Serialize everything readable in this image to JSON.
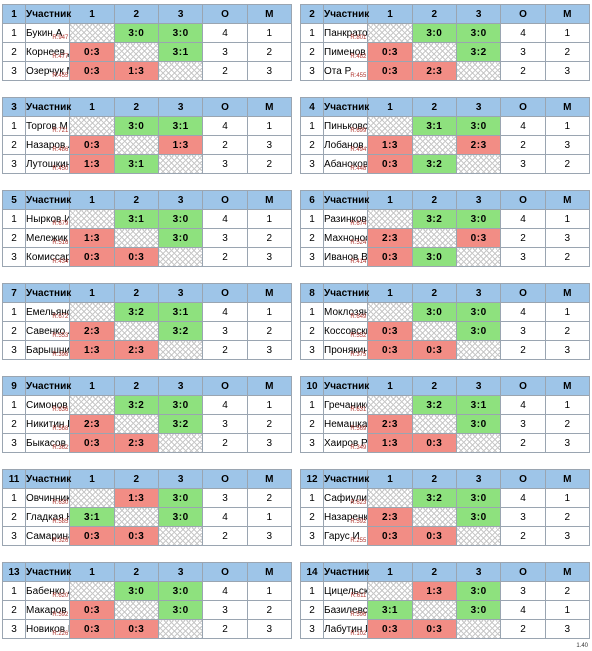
{
  "headers": {
    "participant": "Участник",
    "c1": "1",
    "c2": "2",
    "c3": "3",
    "points": "О",
    "place": "М"
  },
  "version": "1.40",
  "colors": {
    "win": "#8ee17e",
    "loss": "#f28d85",
    "header": "#9ec5e8"
  },
  "groups": [
    {
      "num": "1",
      "rows": [
        {
          "pos": "1",
          "name": "Букин А",
          "rating": "R:947",
          "cells": [
            "X",
            "3:0",
            "3:0"
          ],
          "points": "4",
          "place": "1"
        },
        {
          "pos": "2",
          "name": "Корнеев Д",
          "rating": "R:477",
          "cells": [
            "0:3",
            "X",
            "3:1"
          ],
          "points": "3",
          "place": "2"
        },
        {
          "pos": "3",
          "name": "Озерчук М",
          "rating": "R:455",
          "cells": [
            "0:3",
            "1:3",
            "X"
          ],
          "points": "2",
          "place": "3"
        }
      ]
    },
    {
      "num": "2",
      "rows": [
        {
          "pos": "1",
          "name": "Панкратов В",
          "rating": "R:801",
          "cells": [
            "X",
            "3:0",
            "3:0"
          ],
          "points": "4",
          "place": "1"
        },
        {
          "pos": "2",
          "name": "Пименов Д",
          "rating": "R:482",
          "cells": [
            "0:3",
            "X",
            "3:2"
          ],
          "points": "3",
          "place": "2"
        },
        {
          "pos": "3",
          "name": "Ота Р",
          "rating": "R:455",
          "cells": [
            "0:3",
            "2:3",
            "X"
          ],
          "points": "2",
          "place": "3"
        }
      ]
    },
    {
      "num": "3",
      "rows": [
        {
          "pos": "1",
          "name": "Торгов М",
          "rating": "R:721",
          "cells": [
            "X",
            "3:0",
            "3:1"
          ],
          "points": "4",
          "place": "1"
        },
        {
          "pos": "2",
          "name": "Назаров А",
          "rating": "R:486",
          "cells": [
            "0:3",
            "X",
            "1:3"
          ],
          "points": "2",
          "place": "3"
        },
        {
          "pos": "3",
          "name": "Лутошкина Н",
          "rating": "R:450",
          "cells": [
            "1:3",
            "3:1",
            "X"
          ],
          "points": "3",
          "place": "2"
        }
      ]
    },
    {
      "num": "4",
      "rows": [
        {
          "pos": "1",
          "name": "Пиньковский Г",
          "rating": "R:699",
          "cells": [
            "X",
            "3:1",
            "3:0"
          ],
          "points": "4",
          "place": "1"
        },
        {
          "pos": "2",
          "name": "Лобанов А",
          "rating": "R:494",
          "cells": [
            "1:3",
            "X",
            "2:3"
          ],
          "points": "2",
          "place": "3"
        },
        {
          "pos": "3",
          "name": "Абаноков З",
          "rating": "R:448",
          "cells": [
            "0:3",
            "3:2",
            "X"
          ],
          "points": "3",
          "place": "2"
        }
      ]
    },
    {
      "num": "5",
      "rows": [
        {
          "pos": "1",
          "name": "Нырков И",
          "rating": "R:679",
          "cells": [
            "X",
            "3:1",
            "3:0"
          ],
          "points": "4",
          "place": "1"
        },
        {
          "pos": "2",
          "name": "Мележик А",
          "rating": "R:516",
          "cells": [
            "1:3",
            "X",
            "3:0"
          ],
          "points": "3",
          "place": "2"
        },
        {
          "pos": "3",
          "name": "Комиссаров В",
          "rating": "R:434",
          "cells": [
            "0:3",
            "0:3",
            "X"
          ],
          "points": "2",
          "place": "3"
        }
      ]
    },
    {
      "num": "6",
      "rows": [
        {
          "pos": "1",
          "name": "Разинков Т",
          "rating": "R:674",
          "cells": [
            "X",
            "3:2",
            "3:0"
          ],
          "points": "4",
          "place": "1"
        },
        {
          "pos": "2",
          "name": "Махноносов В",
          "rating": "R:524",
          "cells": [
            "2:3",
            "X",
            "0:3"
          ],
          "points": "2",
          "place": "3"
        },
        {
          "pos": "3",
          "name": "Иванов В",
          "rating": "R:414",
          "cells": [
            "0:3",
            "3:0",
            "X"
          ],
          "points": "3",
          "place": "2"
        }
      ]
    },
    {
      "num": "7",
      "rows": [
        {
          "pos": "1",
          "name": "Емельянов Г",
          "rating": "R:672",
          "cells": [
            "X",
            "3:2",
            "3:1"
          ],
          "points": "4",
          "place": "1"
        },
        {
          "pos": "2",
          "name": "Савенко А",
          "rating": "R:553",
          "cells": [
            "2:3",
            "X",
            "3:2"
          ],
          "points": "3",
          "place": "2"
        },
        {
          "pos": "3",
          "name": "Барышников Е",
          "rating": "R:398",
          "cells": [
            "1:3",
            "2:3",
            "X"
          ],
          "points": "2",
          "place": "3"
        }
      ]
    },
    {
      "num": "8",
      "rows": [
        {
          "pos": "1",
          "name": "Моклозян С",
          "rating": "R:649",
          "cells": [
            "X",
            "3:0",
            "3:0"
          ],
          "points": "4",
          "place": "1"
        },
        {
          "pos": "2",
          "name": "Коссовский Г",
          "rating": "R:552",
          "cells": [
            "0:3",
            "X",
            "3:0"
          ],
          "points": "3",
          "place": "2"
        },
        {
          "pos": "3",
          "name": "Пронякина И",
          "rating": "R:375",
          "cells": [
            "0:3",
            "0:3",
            "X"
          ],
          "points": "2",
          "place": "3"
        }
      ]
    },
    {
      "num": "9",
      "rows": [
        {
          "pos": "1",
          "name": "Симонов С",
          "rating": "R:636",
          "cells": [
            "X",
            "3:2",
            "3:0"
          ],
          "points": "4",
          "place": "1"
        },
        {
          "pos": "2",
          "name": "Никитин Р",
          "rating": "R:568",
          "cells": [
            "2:3",
            "X",
            "3:2"
          ],
          "points": "3",
          "place": "2"
        },
        {
          "pos": "3",
          "name": "Быкасов А",
          "rating": "R:362",
          "cells": [
            "0:3",
            "2:3",
            "X"
          ],
          "points": "2",
          "place": "3"
        }
      ]
    },
    {
      "num": "10",
      "rows": [
        {
          "pos": "1",
          "name": "Гречаников С",
          "rating": "R:631",
          "cells": [
            "X",
            "3:2",
            "3:1"
          ],
          "points": "4",
          "place": "1"
        },
        {
          "pos": "2",
          "name": "Немашкало В",
          "rating": "R:569",
          "cells": [
            "2:3",
            "X",
            "3:0"
          ],
          "points": "3",
          "place": "2"
        },
        {
          "pos": "3",
          "name": "Хаиров Р",
          "rating": "R:349",
          "cells": [
            "1:3",
            "0:3",
            "X"
          ],
          "points": "2",
          "place": "3"
        }
      ]
    },
    {
      "num": "11",
      "rows": [
        {
          "pos": "1",
          "name": "Овчинников А",
          "rating": "R:630",
          "cells": [
            "X",
            "1:3",
            "3:0"
          ],
          "points": "3",
          "place": "2"
        },
        {
          "pos": "2",
          "name": "Гладкая Н",
          "rating": "R:585",
          "cells": [
            "3:1",
            "X",
            "3:0"
          ],
          "points": "4",
          "place": "1"
        },
        {
          "pos": "3",
          "name": "Самарина Е",
          "rating": "R:326",
          "cells": [
            "0:3",
            "0:3",
            "X"
          ],
          "points": "2",
          "place": "3"
        }
      ]
    },
    {
      "num": "12",
      "rows": [
        {
          "pos": "1",
          "name": "Сафиулин М",
          "rating": "R:623",
          "cells": [
            "X",
            "3:2",
            "3:0"
          ],
          "points": "4",
          "place": "1"
        },
        {
          "pos": "2",
          "name": "Назаренко О",
          "rating": "R:592",
          "cells": [
            "2:3",
            "X",
            "3:0"
          ],
          "points": "3",
          "place": "2"
        },
        {
          "pos": "3",
          "name": "Гарус И",
          "rating": "R:255",
          "cells": [
            "0:3",
            "0:3",
            "X"
          ],
          "points": "2",
          "place": "3"
        }
      ]
    },
    {
      "num": "13",
      "rows": [
        {
          "pos": "1",
          "name": "Бабенко А",
          "rating": "R:620",
          "cells": [
            "X",
            "3:0",
            "3:0"
          ],
          "points": "4",
          "place": "1"
        },
        {
          "pos": "2",
          "name": "Макаров Д",
          "rating": "R:592",
          "cells": [
            "0:3",
            "X",
            "3:0"
          ],
          "points": "3",
          "place": "2"
        },
        {
          "pos": "3",
          "name": "Новиков В",
          "rating": "R:226",
          "cells": [
            "0:3",
            "0:3",
            "X"
          ],
          "points": "2",
          "place": "3"
        }
      ]
    },
    {
      "num": "14",
      "rows": [
        {
          "pos": "1",
          "name": "Цицельский А",
          "rating": "R:611",
          "cells": [
            "X",
            "1:3",
            "3:0"
          ],
          "points": "3",
          "place": "2"
        },
        {
          "pos": "2",
          "name": "Базилевский Г",
          "rating": "R:596",
          "cells": [
            "3:1",
            "X",
            "3:0"
          ],
          "points": "4",
          "place": "1"
        },
        {
          "pos": "3",
          "name": "Лабутин П",
          "rating": "R:102",
          "cells": [
            "0:3",
            "0:3",
            "X"
          ],
          "points": "2",
          "place": "3"
        }
      ]
    }
  ]
}
